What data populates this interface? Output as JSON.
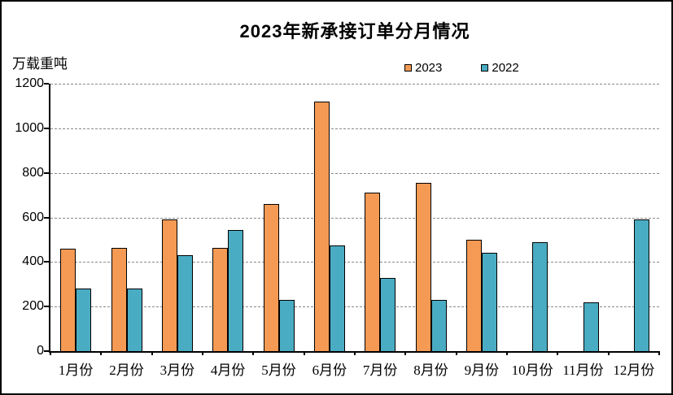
{
  "window": {
    "background": "#ffffff",
    "border_color": "#000000"
  },
  "chart_data": {
    "type": "bar",
    "title": "2023年新承接订单分月情况",
    "ylabel": "万载重吨",
    "xlabel": "",
    "categories": [
      "1月份",
      "2月份",
      "3月份",
      "4月份",
      "5月份",
      "6月份",
      "7月份",
      "8月份",
      "9月份",
      "10月份",
      "11月份",
      "12月份"
    ],
    "series": [
      {
        "name": "2023",
        "color": "#F49A54",
        "values": [
          460,
          465,
          590,
          465,
          660,
          1120,
          710,
          755,
          500,
          null,
          null,
          null
        ]
      },
      {
        "name": "2022",
        "color": "#4AACC2",
        "values": [
          280,
          280,
          430,
          545,
          230,
          475,
          330,
          230,
          440,
          490,
          220,
          590
        ]
      }
    ],
    "ylim": [
      0,
      1200
    ],
    "yticks": [
      0,
      200,
      400,
      600,
      800,
      1000,
      1200
    ],
    "grid": {
      "horizontal": true,
      "style": "dashed",
      "color": "#8a8a8a"
    },
    "legend_position": "top",
    "bar_border_color": "#000000"
  }
}
